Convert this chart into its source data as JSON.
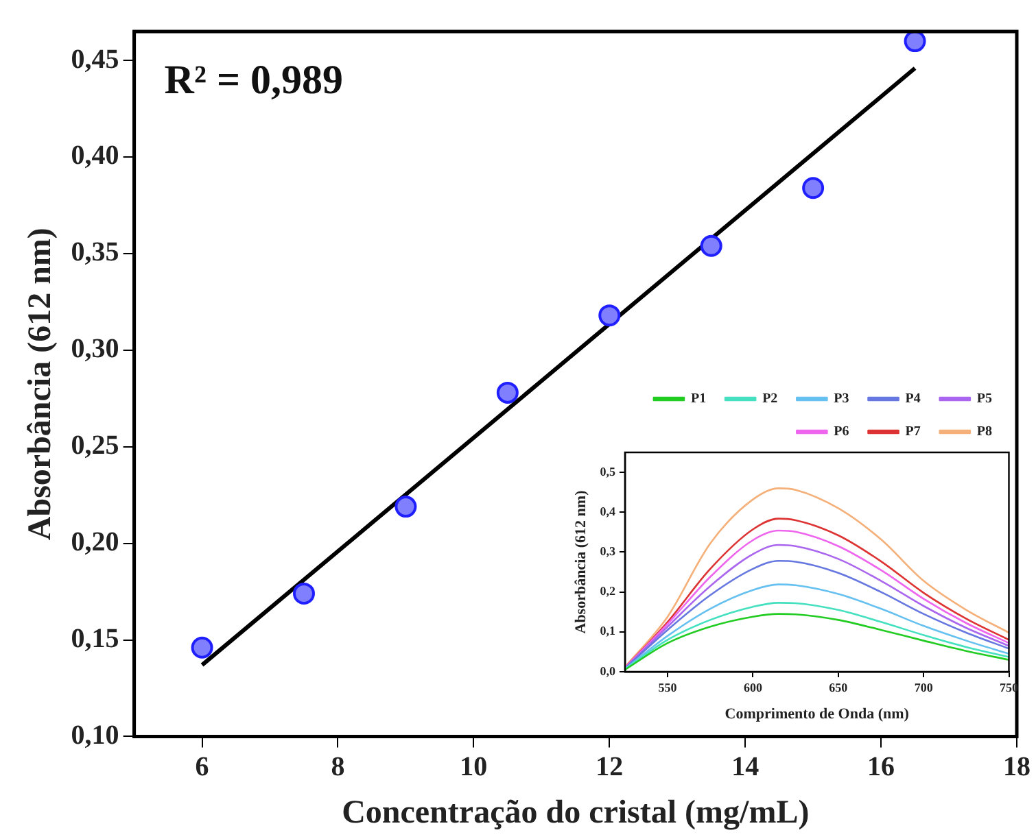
{
  "chart_data": [
    {
      "type": "scatter",
      "xlabel": "Concentração do cristal (mg/mL)",
      "ylabel": "Absorbância (612 nm)",
      "annotations": [
        "R² = 0,989"
      ],
      "grid": false,
      "legend": false,
      "xlim": [
        5,
        18
      ],
      "xticks": [
        6,
        8,
        10,
        12,
        14,
        16,
        18
      ],
      "ylim": [
        0.1,
        0.465
      ],
      "yticks": [
        {
          "value": 0.1,
          "label": "0,10"
        },
        {
          "value": 0.15,
          "label": "0,15"
        },
        {
          "value": 0.2,
          "label": "0,20"
        },
        {
          "value": 0.25,
          "label": "0,25"
        },
        {
          "value": 0.3,
          "label": "0,30"
        },
        {
          "value": 0.35,
          "label": "0,35"
        },
        {
          "value": 0.4,
          "label": "0,40"
        },
        {
          "value": 0.45,
          "label": "0,45"
        }
      ],
      "x": [
        6,
        7.5,
        9,
        10.5,
        12,
        13.5,
        15,
        16.5
      ],
      "series": [
        {
          "type": "scatter",
          "marker": "circle",
          "color": "#1f1fff",
          "values": [
            0.146,
            0.174,
            0.219,
            0.278,
            0.318,
            0.354,
            0.384,
            0.46
          ]
        },
        {
          "type": "line",
          "color": "#000000",
          "x": [
            6,
            16.5
          ],
          "values": [
            0.137,
            0.446
          ]
        }
      ]
    },
    {
      "type": "line",
      "xlabel": "Comprimento de Onda (nm)",
      "ylabel": "Absorbância (612 nm)",
      "grid": false,
      "legend": "top right",
      "xlim": [
        525,
        750
      ],
      "xticks": [
        550,
        600,
        650,
        700,
        750
      ],
      "ylim": [
        0,
        0.55
      ],
      "yticks": [
        {
          "value": 0,
          "label": "0,0"
        },
        {
          "value": 0.1,
          "label": "0,1"
        },
        {
          "value": 0.2,
          "label": "0,2"
        },
        {
          "value": 0.3,
          "label": "0,3"
        },
        {
          "value": 0.4,
          "label": "0,4"
        },
        {
          "value": 0.5,
          "label": "0,5"
        }
      ],
      "x": [
        525,
        550,
        575,
        600,
        615,
        625,
        650,
        675,
        700,
        725,
        750
      ],
      "series": [
        {
          "name": "P1",
          "color": "#22cc22",
          "values": [
            0.005,
            0.072,
            0.113,
            0.138,
            0.145,
            0.144,
            0.13,
            0.105,
            0.078,
            0.052,
            0.03
          ]
        },
        {
          "name": "P2",
          "color": "#44e0c0",
          "values": [
            0.006,
            0.08,
            0.13,
            0.163,
            0.173,
            0.172,
            0.155,
            0.125,
            0.092,
            0.062,
            0.037
          ]
        },
        {
          "name": "P3",
          "color": "#66c0f0",
          "values": [
            0.007,
            0.09,
            0.158,
            0.205,
            0.219,
            0.217,
            0.195,
            0.158,
            0.115,
            0.078,
            0.045
          ]
        },
        {
          "name": "P4",
          "color": "#6677e0",
          "values": [
            0.008,
            0.105,
            0.192,
            0.258,
            0.278,
            0.276,
            0.248,
            0.2,
            0.145,
            0.098,
            0.058
          ]
        },
        {
          "name": "P5",
          "color": "#aa66ee",
          "values": [
            0.009,
            0.113,
            0.215,
            0.295,
            0.318,
            0.315,
            0.283,
            0.228,
            0.165,
            0.11,
            0.065
          ]
        },
        {
          "name": "P6",
          "color": "#ee66ee",
          "values": [
            0.01,
            0.12,
            0.238,
            0.33,
            0.354,
            0.351,
            0.315,
            0.255,
            0.183,
            0.122,
            0.072
          ]
        },
        {
          "name": "P7",
          "color": "#dd3333",
          "values": [
            0.01,
            0.125,
            0.258,
            0.357,
            0.384,
            0.38,
            0.342,
            0.277,
            0.198,
            0.133,
            0.08
          ]
        },
        {
          "name": "P8",
          "color": "#f5b07a",
          "values": [
            0.012,
            0.138,
            0.322,
            0.432,
            0.46,
            0.456,
            0.41,
            0.332,
            0.228,
            0.155,
            0.098
          ]
        }
      ]
    }
  ]
}
